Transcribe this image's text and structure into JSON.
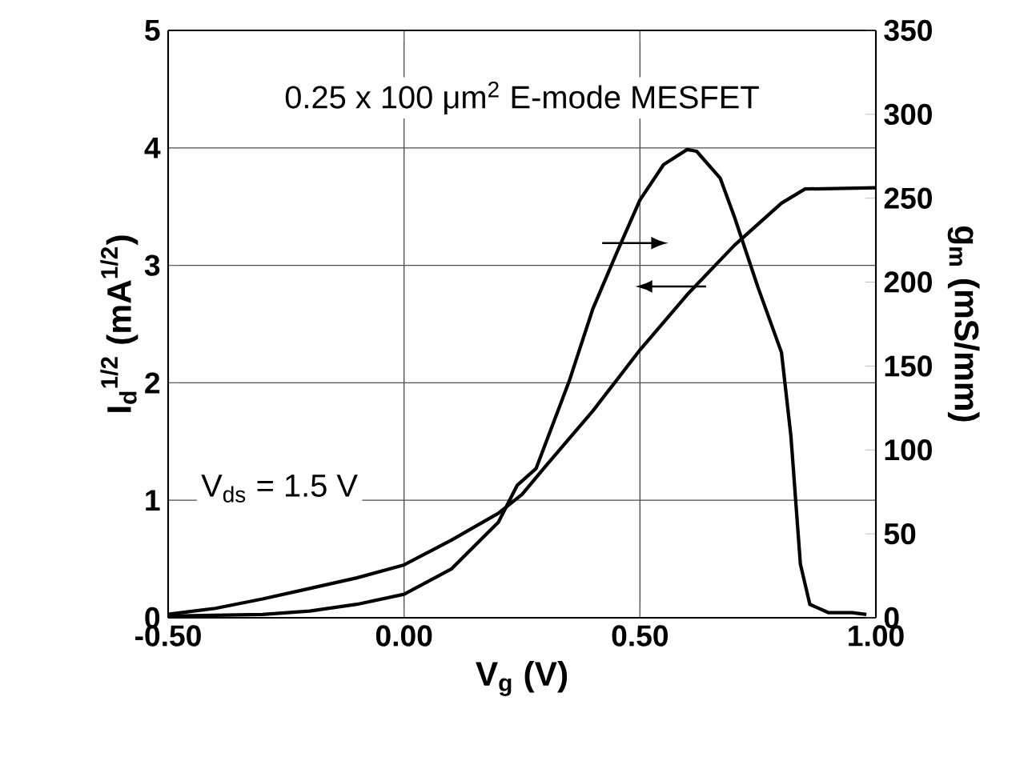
{
  "chart_data": {
    "type": "line",
    "xlabel": "V$_{g}$ (V)",
    "ylabel": "I$_{d}$$^{1/2}$ (mA$^{1/2}$)",
    "y2label": "g$_{m}$ (mS/mm)",
    "annotations": [
      "0.25 x 100 μm$^{2}$ E-mode MESFET",
      "V$_{ds}$ = 1.5 V"
    ],
    "xlim": [
      -0.5,
      1.0
    ],
    "xticks": [
      {
        "value": -0.5,
        "label": "-0.50"
      },
      {
        "value": 0,
        "label": "0.00"
      },
      {
        "value": 0.5,
        "label": "0.50"
      },
      {
        "value": 1.0,
        "label": "1.00"
      }
    ],
    "ylim": [
      0,
      5
    ],
    "yticks": [
      0,
      1,
      2,
      3,
      4,
      5
    ],
    "y2lim": [
      0,
      350
    ],
    "y2ticks": [
      0,
      50,
      100,
      150,
      200,
      250,
      300,
      350
    ],
    "grid": true,
    "series": [
      {
        "color": "#000000",
        "x": [
          -0.5,
          -0.4,
          -0.3,
          -0.2,
          -0.1,
          0.0,
          0.1,
          0.2,
          0.25,
          0.3,
          0.4,
          0.5,
          0.6,
          0.7,
          0.8,
          0.85,
          1.0
        ],
        "values": [
          0.03,
          0.08,
          0.16,
          0.25,
          0.34,
          0.45,
          0.66,
          0.89,
          1.05,
          1.29,
          1.76,
          2.28,
          2.75,
          3.17,
          3.53,
          3.65,
          3.66
        ]
      },
      {
        "color": "#000000",
        "axis": "y2",
        "x": [
          -0.5,
          -0.3,
          -0.2,
          -0.1,
          0.0,
          0.1,
          0.2,
          0.24,
          0.28,
          0.35,
          0.4,
          0.45,
          0.5,
          0.55,
          0.6,
          0.62,
          0.67,
          0.7,
          0.75,
          0.8,
          0.82,
          0.84,
          0.86,
          0.9,
          0.95,
          0.98
        ],
        "values": [
          1,
          2,
          4,
          8,
          14,
          29,
          57,
          79,
          89,
          141,
          184,
          217,
          249,
          270,
          279,
          278,
          262,
          239,
          197,
          158,
          108,
          32,
          8,
          3,
          3,
          2
        ]
      }
    ]
  }
}
